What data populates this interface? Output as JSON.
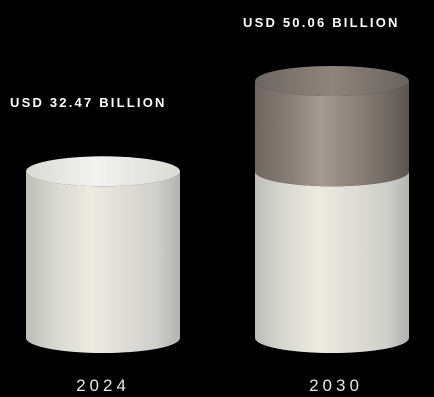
{
  "chart_data": {
    "type": "bar",
    "categories": [
      "2024",
      "2030"
    ],
    "values": [
      32.47,
      50.06
    ],
    "value_labels": [
      "USD 32.47 BILLION",
      "USD 50.06 BILLION"
    ],
    "title": "",
    "xlabel": "",
    "ylabel": "",
    "unit": "USD billion",
    "ylim": [
      0,
      50.06
    ],
    "grid": false,
    "legend": "none"
  },
  "colors": {
    "background": "#000000",
    "cylinder_base": "#dcdcd6",
    "cylinder_highlight": "#eeece0",
    "growth_segment": "#8a7f78",
    "label_text": "#ffffff",
    "year_text": "#e6e6e6"
  }
}
